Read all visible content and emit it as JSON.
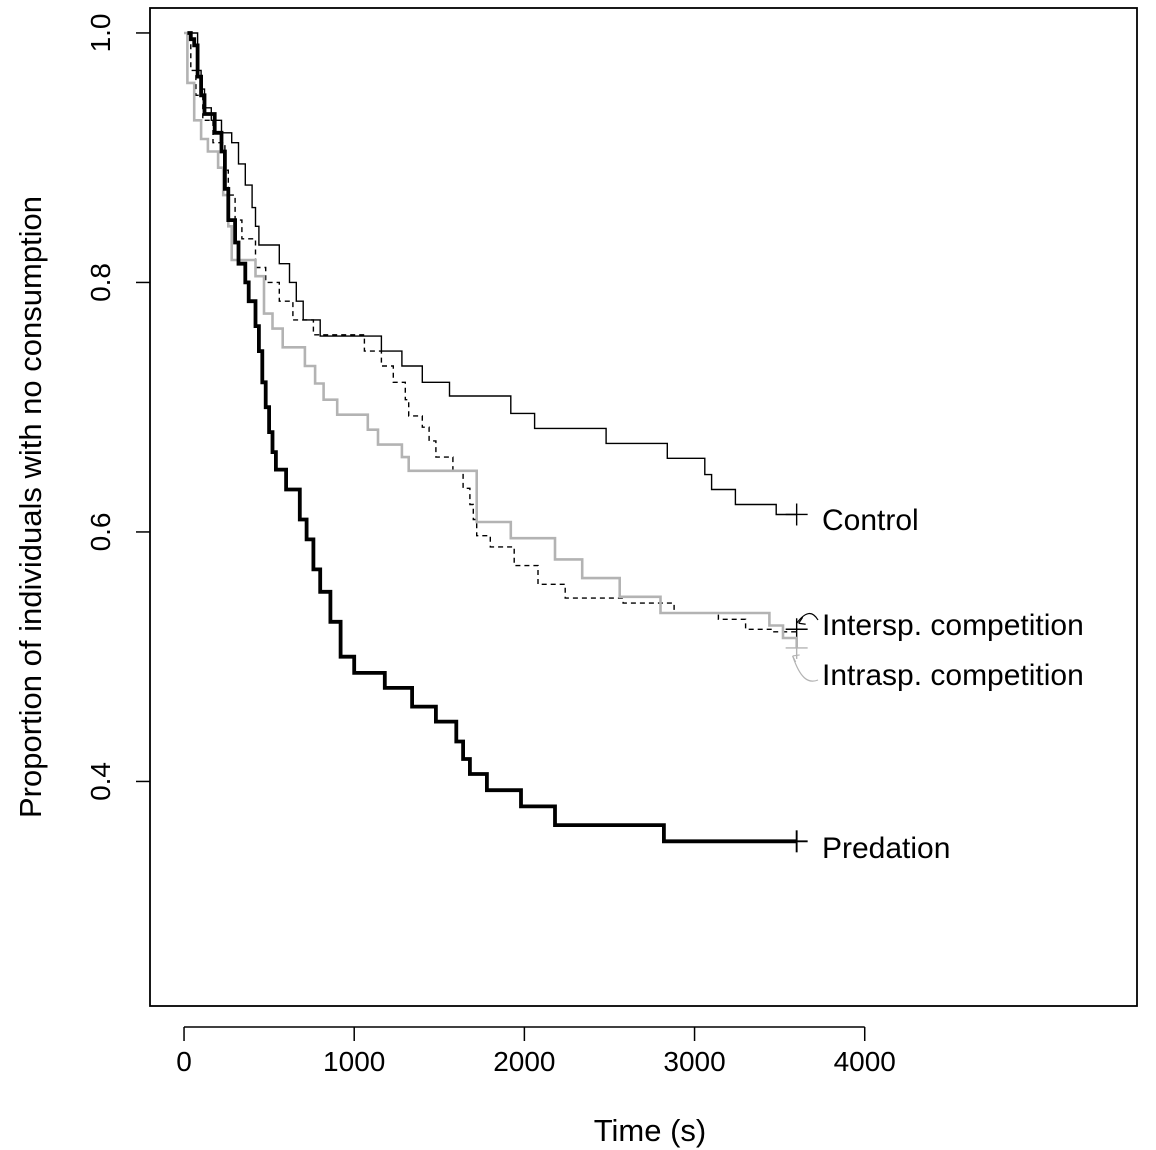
{
  "chart_data": {
    "type": "line",
    "step": true,
    "title": "",
    "xlabel": "Time (s)",
    "ylabel": "Proportion of individuals with no consumption",
    "xlim": [
      -200,
      5600
    ],
    "ylim": [
      0.22,
      1.02
    ],
    "xticks": [
      0,
      1000,
      2000,
      3000,
      4000
    ],
    "xtick_labels": [
      "0",
      "1000",
      "2000",
      "3000",
      "4000"
    ],
    "yticks": [
      0.4,
      0.6,
      0.8,
      1.0
    ],
    "ytick_labels": [
      "0.4",
      "0.6",
      "0.8",
      "1.0"
    ],
    "grid": false,
    "legend": "none (direct line labels at right)",
    "series": [
      {
        "name": "Control",
        "color": "#000000",
        "stroke": "thin-solid",
        "censor_x": 3600,
        "points": [
          [
            0,
            1.0
          ],
          [
            60,
            1.0
          ],
          [
            80,
            0.97
          ],
          [
            100,
            0.955
          ],
          [
            120,
            0.94
          ],
          [
            160,
            0.93
          ],
          [
            220,
            0.92
          ],
          [
            280,
            0.912
          ],
          [
            320,
            0.895
          ],
          [
            360,
            0.878
          ],
          [
            400,
            0.86
          ],
          [
            420,
            0.845
          ],
          [
            440,
            0.83
          ],
          [
            560,
            0.815
          ],
          [
            620,
            0.8
          ],
          [
            660,
            0.785
          ],
          [
            700,
            0.77
          ],
          [
            800,
            0.757
          ],
          [
            1160,
            0.745
          ],
          [
            1280,
            0.733
          ],
          [
            1400,
            0.72
          ],
          [
            1560,
            0.709
          ],
          [
            1920,
            0.695
          ],
          [
            2060,
            0.683
          ],
          [
            2480,
            0.671
          ],
          [
            2840,
            0.659
          ],
          [
            3060,
            0.646
          ],
          [
            3100,
            0.634
          ],
          [
            3240,
            0.622
          ],
          [
            3480,
            0.614
          ],
          [
            3600,
            0.614
          ]
        ]
      },
      {
        "name": "Intersp. competition",
        "color": "#000000",
        "stroke": "thin-dashed",
        "censor_x": 3600,
        "points": [
          [
            0,
            1.0
          ],
          [
            40,
            0.97
          ],
          [
            70,
            0.95
          ],
          [
            110,
            0.93
          ],
          [
            170,
            0.912
          ],
          [
            240,
            0.89
          ],
          [
            260,
            0.87
          ],
          [
            300,
            0.85
          ],
          [
            340,
            0.835
          ],
          [
            420,
            0.812
          ],
          [
            480,
            0.8
          ],
          [
            560,
            0.785
          ],
          [
            640,
            0.77
          ],
          [
            760,
            0.758
          ],
          [
            1060,
            0.745
          ],
          [
            1160,
            0.733
          ],
          [
            1230,
            0.72
          ],
          [
            1300,
            0.706
          ],
          [
            1320,
            0.693
          ],
          [
            1400,
            0.684
          ],
          [
            1440,
            0.673
          ],
          [
            1480,
            0.66
          ],
          [
            1580,
            0.649
          ],
          [
            1640,
            0.635
          ],
          [
            1680,
            0.622
          ],
          [
            1700,
            0.61
          ],
          [
            1720,
            0.597
          ],
          [
            1800,
            0.588
          ],
          [
            1940,
            0.573
          ],
          [
            2080,
            0.558
          ],
          [
            2240,
            0.547
          ],
          [
            2580,
            0.543
          ],
          [
            2880,
            0.535
          ],
          [
            3140,
            0.53
          ],
          [
            3300,
            0.522
          ],
          [
            3460,
            0.52
          ],
          [
            3600,
            0.522
          ]
        ]
      },
      {
        "name": "Intrasp. competition",
        "color": "#b3b3b3",
        "stroke": "medium-solid",
        "censor_x": 3600,
        "points": [
          [
            0,
            1.0
          ],
          [
            20,
            0.96
          ],
          [
            60,
            0.93
          ],
          [
            100,
            0.915
          ],
          [
            140,
            0.905
          ],
          [
            200,
            0.892
          ],
          [
            230,
            0.87
          ],
          [
            260,
            0.845
          ],
          [
            280,
            0.818
          ],
          [
            420,
            0.805
          ],
          [
            470,
            0.775
          ],
          [
            520,
            0.763
          ],
          [
            580,
            0.748
          ],
          [
            710,
            0.733
          ],
          [
            770,
            0.719
          ],
          [
            820,
            0.706
          ],
          [
            900,
            0.694
          ],
          [
            1080,
            0.682
          ],
          [
            1140,
            0.67
          ],
          [
            1280,
            0.66
          ],
          [
            1320,
            0.649
          ],
          [
            1660,
            0.649
          ],
          [
            1720,
            0.608
          ],
          [
            1920,
            0.595
          ],
          [
            2180,
            0.578
          ],
          [
            2340,
            0.563
          ],
          [
            2560,
            0.548
          ],
          [
            2800,
            0.535
          ],
          [
            3040,
            0.535
          ],
          [
            3440,
            0.525
          ],
          [
            3520,
            0.515
          ],
          [
            3600,
            0.507
          ]
        ]
      },
      {
        "name": "Predation",
        "color": "#000000",
        "stroke": "thick-solid",
        "censor_x": 3600,
        "points": [
          [
            20,
            1.0
          ],
          [
            40,
            0.995
          ],
          [
            60,
            0.99
          ],
          [
            80,
            0.965
          ],
          [
            100,
            0.95
          ],
          [
            120,
            0.935
          ],
          [
            180,
            0.92
          ],
          [
            220,
            0.905
          ],
          [
            240,
            0.875
          ],
          [
            260,
            0.85
          ],
          [
            300,
            0.832
          ],
          [
            320,
            0.815
          ],
          [
            360,
            0.8
          ],
          [
            380,
            0.785
          ],
          [
            420,
            0.765
          ],
          [
            440,
            0.745
          ],
          [
            460,
            0.72
          ],
          [
            480,
            0.7
          ],
          [
            500,
            0.68
          ],
          [
            520,
            0.664
          ],
          [
            540,
            0.65
          ],
          [
            600,
            0.634
          ],
          [
            680,
            0.61
          ],
          [
            720,
            0.594
          ],
          [
            760,
            0.57
          ],
          [
            800,
            0.552
          ],
          [
            860,
            0.528
          ],
          [
            920,
            0.5
          ],
          [
            1000,
            0.487
          ],
          [
            1180,
            0.475
          ],
          [
            1340,
            0.46
          ],
          [
            1480,
            0.448
          ],
          [
            1600,
            0.432
          ],
          [
            1640,
            0.418
          ],
          [
            1680,
            0.406
          ],
          [
            1780,
            0.393
          ],
          [
            1980,
            0.38
          ],
          [
            2180,
            0.365
          ],
          [
            2820,
            0.352
          ],
          [
            3600,
            0.352
          ]
        ]
      }
    ],
    "annotations": [
      {
        "text": "Control",
        "series": "Control",
        "y": 0.614
      },
      {
        "text": "Intersp. competition",
        "series": "Intersp. competition",
        "y": 0.522
      },
      {
        "text": "Intrasp. competition",
        "series": "Intrasp. competition",
        "y": 0.507
      },
      {
        "text": "Predation",
        "series": "Predation",
        "y": 0.352
      }
    ]
  }
}
